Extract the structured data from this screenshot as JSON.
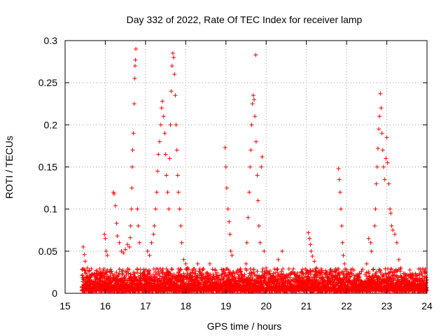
{
  "chart_data": {
    "type": "scatter",
    "title": "Day 332 of 2022, Rate Of TEC Index for receiver lamp",
    "xlabel": "GPS time / hours",
    "ylabel": "ROTI / TECUs",
    "xlim": [
      15,
      24
    ],
    "ylim": [
      0,
      0.3
    ],
    "x_ticks": [
      "15",
      "16",
      "17",
      "18",
      "19",
      "20",
      "21",
      "22",
      "23",
      "24"
    ],
    "y_ticks": [
      "0",
      "0.05",
      "0.1",
      "0.15",
      "0.2",
      "0.25",
      "0.3"
    ],
    "grid": true,
    "marker": "+",
    "marker_color": "#ff0000",
    "baseline": {
      "x_start": 15.42,
      "x_end": 24.0,
      "typical_range": [
        0.003,
        0.025
      ]
    },
    "series": [
      {
        "name": "ROTI",
        "points": [
          [
            15.45,
            0.055
          ],
          [
            15.48,
            0.046
          ],
          [
            15.5,
            0.038
          ],
          [
            15.55,
            0.03
          ],
          [
            15.6,
            0.027
          ],
          [
            15.98,
            0.07
          ],
          [
            16.0,
            0.065
          ],
          [
            16.02,
            0.05
          ],
          [
            16.05,
            0.045
          ],
          [
            16.2,
            0.12
          ],
          [
            16.22,
            0.118
          ],
          [
            16.25,
            0.104
          ],
          [
            16.28,
            0.083
          ],
          [
            16.3,
            0.068
          ],
          [
            16.35,
            0.06
          ],
          [
            16.4,
            0.05
          ],
          [
            16.45,
            0.048
          ],
          [
            16.5,
            0.052
          ],
          [
            16.55,
            0.058
          ],
          [
            16.6,
            0.055
          ],
          [
            16.62,
            0.066
          ],
          [
            16.63,
            0.08
          ],
          [
            16.65,
            0.1
          ],
          [
            16.66,
            0.125
          ],
          [
            16.67,
            0.15
          ],
          [
            16.68,
            0.17
          ],
          [
            16.7,
            0.19
          ],
          [
            16.72,
            0.225
          ],
          [
            16.73,
            0.255
          ],
          [
            16.74,
            0.27
          ],
          [
            16.75,
            0.277
          ],
          [
            16.76,
            0.29
          ],
          [
            16.8,
            0.1
          ],
          [
            16.82,
            0.08
          ],
          [
            16.85,
            0.06
          ],
          [
            17.05,
            0.05
          ],
          [
            17.1,
            0.045
          ],
          [
            17.15,
            0.06
          ],
          [
            17.2,
            0.07
          ],
          [
            17.22,
            0.08
          ],
          [
            17.25,
            0.1
          ],
          [
            17.28,
            0.12
          ],
          [
            17.3,
            0.145
          ],
          [
            17.32,
            0.165
          ],
          [
            17.35,
            0.18
          ],
          [
            17.38,
            0.2
          ],
          [
            17.4,
            0.22
          ],
          [
            17.42,
            0.228
          ],
          [
            17.45,
            0.21
          ],
          [
            17.48,
            0.19
          ],
          [
            17.5,
            0.165
          ],
          [
            17.52,
            0.14
          ],
          [
            17.55,
            0.12
          ],
          [
            17.58,
            0.1
          ],
          [
            17.6,
            0.16
          ],
          [
            17.62,
            0.2
          ],
          [
            17.64,
            0.24
          ],
          [
            17.66,
            0.27
          ],
          [
            17.68,
            0.285
          ],
          [
            17.7,
            0.28
          ],
          [
            17.72,
            0.26
          ],
          [
            17.74,
            0.235
          ],
          [
            17.76,
            0.2
          ],
          [
            17.78,
            0.17
          ],
          [
            17.8,
            0.14
          ],
          [
            17.82,
            0.12
          ],
          [
            17.85,
            0.1
          ],
          [
            17.88,
            0.08
          ],
          [
            17.9,
            0.06
          ],
          [
            17.95,
            0.04
          ],
          [
            18.0,
            0.035
          ],
          [
            18.05,
            0.03
          ],
          [
            18.3,
            0.035
          ],
          [
            18.6,
            0.035
          ],
          [
            18.98,
            0.173
          ],
          [
            19.0,
            0.15
          ],
          [
            19.02,
            0.125
          ],
          [
            19.05,
            0.1
          ],
          [
            19.08,
            0.085
          ],
          [
            19.1,
            0.07
          ],
          [
            19.12,
            0.05
          ],
          [
            19.15,
            0.045
          ],
          [
            19.5,
            0.035
          ],
          [
            19.52,
            0.06
          ],
          [
            19.55,
            0.09
          ],
          [
            19.58,
            0.12
          ],
          [
            19.6,
            0.15
          ],
          [
            19.62,
            0.17
          ],
          [
            19.64,
            0.2
          ],
          [
            19.66,
            0.225
          ],
          [
            19.68,
            0.235
          ],
          [
            19.7,
            0.23
          ],
          [
            19.72,
            0.21
          ],
          [
            19.74,
            0.283
          ],
          [
            19.75,
            0.18
          ],
          [
            19.78,
            0.14
          ],
          [
            19.8,
            0.11
          ],
          [
            19.82,
            0.08
          ],
          [
            19.85,
            0.06
          ],
          [
            19.88,
            0.15
          ],
          [
            19.9,
            0.162
          ],
          [
            19.95,
            0.05
          ],
          [
            20.0,
            0.03
          ],
          [
            20.3,
            0.04
          ],
          [
            20.4,
            0.05
          ],
          [
            21.05,
            0.072
          ],
          [
            21.08,
            0.065
          ],
          [
            21.1,
            0.058
          ],
          [
            21.12,
            0.05
          ],
          [
            21.15,
            0.044
          ],
          [
            21.2,
            0.038
          ],
          [
            21.25,
            0.03
          ],
          [
            21.3,
            0.025
          ],
          [
            21.5,
            0.025
          ],
          [
            21.6,
            0.022
          ],
          [
            21.8,
            0.148
          ],
          [
            21.82,
            0.135
          ],
          [
            21.84,
            0.12
          ],
          [
            21.86,
            0.1
          ],
          [
            21.88,
            0.08
          ],
          [
            21.9,
            0.06
          ],
          [
            21.92,
            0.045
          ],
          [
            21.95,
            0.035
          ],
          [
            22.0,
            0.028
          ],
          [
            22.5,
            0.035
          ],
          [
            22.55,
            0.065
          ],
          [
            22.6,
            0.06
          ],
          [
            22.62,
            0.05
          ],
          [
            22.7,
            0.08
          ],
          [
            22.72,
            0.1
          ],
          [
            22.74,
            0.13
          ],
          [
            22.76,
            0.15
          ],
          [
            22.78,
            0.172
          ],
          [
            22.8,
            0.195
          ],
          [
            22.82,
            0.21
          ],
          [
            22.84,
            0.237
          ],
          [
            22.86,
            0.22
          ],
          [
            22.88,
            0.19
          ],
          [
            22.9,
            0.17
          ],
          [
            22.92,
            0.15
          ],
          [
            22.95,
            0.135
          ],
          [
            22.98,
            0.16
          ],
          [
            23.0,
            0.185
          ],
          [
            23.02,
            0.155
          ],
          [
            23.05,
            0.13
          ],
          [
            23.08,
            0.1
          ],
          [
            23.1,
            0.095
          ],
          [
            23.12,
            0.08
          ],
          [
            23.15,
            0.075
          ],
          [
            23.2,
            0.07
          ],
          [
            23.25,
            0.06
          ],
          [
            23.3,
            0.04
          ],
          [
            23.35,
            0.03
          ]
        ]
      }
    ]
  }
}
